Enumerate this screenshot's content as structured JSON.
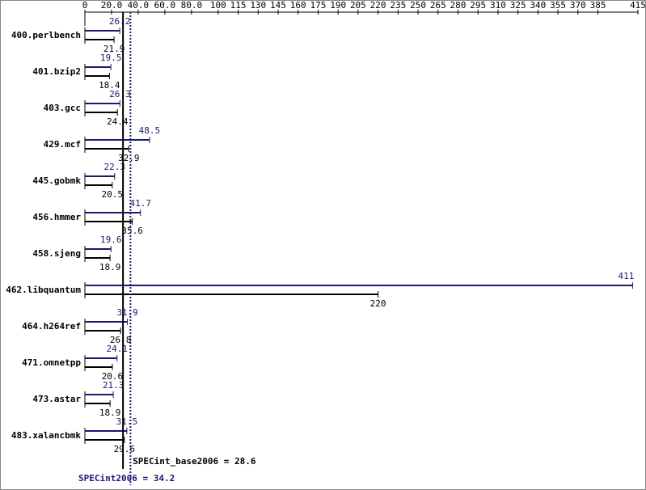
{
  "chart_data": {
    "type": "bar",
    "categories": [
      "400.perlbench",
      "401.bzip2",
      "403.gcc",
      "429.mcf",
      "445.gobmk",
      "456.hmmer",
      "458.sjeng",
      "462.libquantum",
      "464.h264ref",
      "471.omnetpp",
      "473.astar",
      "483.xalancbmk"
    ],
    "series": [
      {
        "color": "#191970",
        "values": [
          26.2,
          19.5,
          26.3,
          48.5,
          22.3,
          41.7,
          19.6,
          411,
          31.9,
          24.1,
          21.3,
          31.5
        ]
      },
      {
        "color": "#000000",
        "values": [
          21.9,
          18.4,
          24.4,
          32.9,
          20.5,
          35.6,
          18.9,
          220,
          26.8,
          20.6,
          18.9,
          29.6
        ]
      }
    ],
    "xlim": [
      0,
      415
    ],
    "xticks": [
      0,
      {
        "value": 20,
        "label": "20.0"
      },
      {
        "value": 40,
        "label": "40.0"
      },
      {
        "value": 60,
        "label": "60.0"
      },
      {
        "value": 80,
        "label": "80.0"
      },
      100,
      115,
      130,
      145,
      160,
      175,
      190,
      205,
      220,
      235,
      250,
      265,
      280,
      295,
      310,
      325,
      340,
      355,
      370,
      385,
      415
    ],
    "base_mean": {
      "label": "SPECint_base2006 = 28.6",
      "value": 28.6,
      "color": "#000000"
    },
    "peak_mean": {
      "label": "SPECint2006 = 34.2",
      "value": 34.2,
      "color": "#191970"
    }
  }
}
